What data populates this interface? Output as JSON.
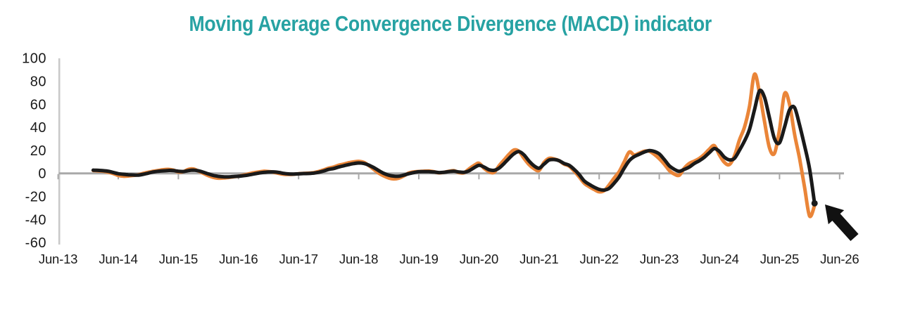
{
  "chart_data": {
    "type": "line",
    "title": "Moving Average Convergence Divergence (MACD) indicator",
    "title_color": "#27A2A3",
    "xlabel": "",
    "ylabel": "",
    "ylim": [
      -60,
      100
    ],
    "grid": "none",
    "legend": "none",
    "x_tick_labels": [
      "Jun-13",
      "Jun-14",
      "Jun-15",
      "Jun-16",
      "Jun-17",
      "Jun-18",
      "Jun-19",
      "Jun-20",
      "Jun-21",
      "Jun-22",
      "Jun-23",
      "Jun-24",
      "Jun-25",
      "Jun-26"
    ],
    "y_tick_labels": [
      "100",
      "80",
      "60",
      "40",
      "20",
      "0",
      "-20",
      "-40",
      "-60"
    ],
    "y_tick_values": [
      100,
      80,
      60,
      40,
      20,
      0,
      -20,
      -40,
      -60
    ],
    "zero_line": true,
    "frequency": "monthly",
    "start_month": "2014-01",
    "end_month": "2026-01",
    "series": [
      {
        "name": "orange-line",
        "color": "#EA8538",
        "values": [
          2.5,
          2.2,
          1.8,
          1.0,
          -0.2,
          -1.8,
          -2.5,
          -2.3,
          -1.8,
          -1.2,
          0.0,
          1.0,
          1.8,
          2.5,
          3.2,
          3.5,
          2.8,
          1.2,
          1.5,
          3.5,
          3.8,
          2.0,
          0.0,
          -2.0,
          -3.5,
          -4.2,
          -4.0,
          -3.6,
          -3.0,
          -2.5,
          -1.5,
          -0.5,
          0.5,
          1.2,
          1.8,
          1.6,
          1.0,
          0.0,
          -0.8,
          -1.0,
          -0.8,
          -0.3,
          0.0,
          0.2,
          0.6,
          1.6,
          3.0,
          4.5,
          5.5,
          7.0,
          8.0,
          9.2,
          10.0,
          10.4,
          9.6,
          6.8,
          3.5,
          0.2,
          -2.2,
          -4.0,
          -4.8,
          -4.2,
          -2.2,
          0.3,
          1.3,
          1.6,
          1.9,
          2.0,
          1.4,
          0.4,
          0.9,
          1.8,
          2.3,
          0.7,
          0.5,
          3.8,
          6.8,
          8.8,
          4.5,
          1.5,
          0.8,
          6.5,
          11.5,
          16.5,
          20.3,
          19.0,
          13.0,
          7.6,
          4.0,
          2.5,
          9.5,
          13.0,
          12.5,
          11.0,
          8.0,
          6.3,
          2.0,
          -3.0,
          -8.5,
          -11.5,
          -14.0,
          -16.0,
          -15.0,
          -10.0,
          -4.0,
          1.5,
          10.0,
          18.5,
          16.0,
          17.5,
          19.2,
          19.2,
          16.5,
          12.7,
          8.0,
          2.5,
          -0.6,
          -1.6,
          4.5,
          8.6,
          10.7,
          13.0,
          16.5,
          21.0,
          24.0,
          16.0,
          9.5,
          7.6,
          15.0,
          29.0,
          40.0,
          58.0,
          86.0,
          70.0,
          45.0,
          22.0,
          17.5,
          38.0,
          69.0,
          60.0,
          34.0,
          13.0,
          -12.0,
          -37.0,
          -28.0
        ],
        "end_dot": false
      },
      {
        "name": "black-line",
        "color": "#1A1A1A",
        "values": [
          2.8,
          2.6,
          2.3,
          1.8,
          0.8,
          -0.3,
          -0.8,
          -1.2,
          -1.4,
          -1.5,
          -0.8,
          0.2,
          1.2,
          1.8,
          2.2,
          2.5,
          2.4,
          1.8,
          1.6,
          2.4,
          2.8,
          2.2,
          1.0,
          -0.5,
          -1.8,
          -2.6,
          -3.0,
          -3.1,
          -2.8,
          -2.5,
          -2.0,
          -1.4,
          -0.6,
          0.2,
          0.8,
          1.2,
          1.3,
          0.8,
          0.0,
          -0.5,
          -0.6,
          -0.4,
          -0.2,
          -0.1,
          0.2,
          0.9,
          2.0,
          3.4,
          4.2,
          5.5,
          6.6,
          7.6,
          8.5,
          9.0,
          8.6,
          7.2,
          5.0,
          2.4,
          0.0,
          -1.6,
          -2.4,
          -2.5,
          -1.5,
          -0.3,
          0.7,
          1.4,
          1.5,
          1.5,
          1.2,
          0.7,
          0.9,
          1.5,
          1.9,
          1.2,
          0.9,
          2.2,
          4.8,
          7.0,
          5.5,
          3.2,
          2.6,
          4.5,
          8.5,
          13.0,
          17.0,
          18.9,
          16.0,
          10.7,
          6.5,
          4.5,
          8.0,
          11.5,
          12.0,
          11.0,
          8.6,
          7.0,
          3.5,
          -1.0,
          -6.5,
          -9.5,
          -12.0,
          -13.9,
          -14.5,
          -13.0,
          -8.5,
          -3.0,
          4.5,
          11.0,
          14.5,
          16.5,
          18.5,
          19.8,
          19.0,
          16.8,
          12.0,
          6.6,
          3.5,
          1.8,
          3.5,
          5.5,
          8.6,
          11.0,
          14.0,
          18.0,
          21.5,
          19.0,
          14.0,
          11.7,
          13.0,
          20.0,
          28.0,
          38.0,
          55.0,
          71.5,
          66.0,
          48.0,
          30.0,
          26.5,
          40.0,
          55.0,
          57.0,
          42.0,
          24.0,
          4.0,
          -26.0
        ],
        "end_dot": true
      }
    ],
    "annotation": {
      "shape": "arrow",
      "description": "thick black arrow pointing up-left at the latest data point",
      "color": "#111111"
    },
    "axis_colors": {
      "y_axis_line": "#C9C9C9",
      "zero_line_and_ticks": "#A9A9A9",
      "label_text": "#1A1A1A"
    }
  }
}
